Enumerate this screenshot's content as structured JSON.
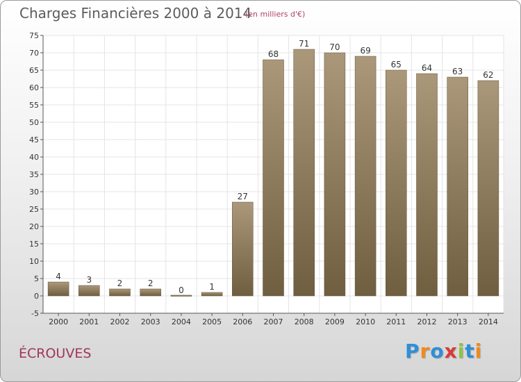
{
  "header": {
    "title": "Charges Financières 2000 à 2014",
    "subtitle": "(en milliers d'€)"
  },
  "footer": {
    "place": "ÉCROUVES",
    "brand": "Proxiti"
  },
  "colors": {
    "bar_top": "#ab987a",
    "bar_bottom": "#6f5e40",
    "grid": "#e4e4e4",
    "axis": "#555555",
    "title": "#5c5c5c",
    "subtitle": "#b0406a",
    "place": "#a0365a",
    "brand": [
      "#2f8fd6",
      "#f08a1c",
      "#2f8fd6",
      "#d93a3a",
      "#8cc63f",
      "#2f8fd6",
      "#f08a1c"
    ]
  },
  "chart_data": {
    "type": "bar",
    "title": "Charges Financières 2000 à 2014",
    "subtitle": "(en milliers d'€)",
    "categories": [
      "2000",
      "2001",
      "2002",
      "2003",
      "2004",
      "2005",
      "2006",
      "2007",
      "2008",
      "2009",
      "2010",
      "2011",
      "2012",
      "2013",
      "2014"
    ],
    "values": [
      4,
      3,
      2,
      2,
      0,
      1,
      27,
      68,
      71,
      70,
      69,
      65,
      64,
      63,
      62
    ],
    "ylim": [
      -5,
      75
    ],
    "yticks": [
      -5,
      0,
      5,
      10,
      15,
      20,
      25,
      30,
      35,
      40,
      45,
      50,
      55,
      60,
      65,
      70,
      75
    ],
    "grid": true,
    "xlabel": "",
    "ylabel": ""
  }
}
